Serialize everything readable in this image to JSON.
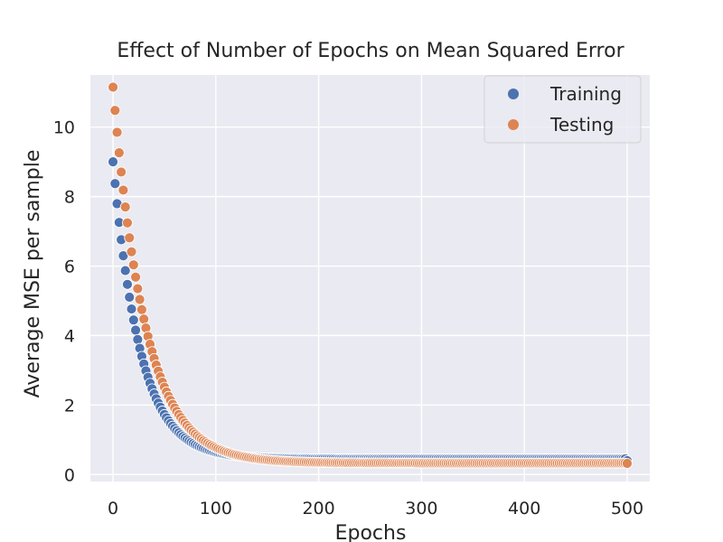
{
  "chart_data": {
    "type": "scatter",
    "title": "Effect of Number of Epochs on Mean Squared Error",
    "xlabel": "Epochs",
    "ylabel": "Average MSE per sample",
    "xlim": [
      -22,
      522
    ],
    "ylim": [
      -0.2,
      11.5
    ],
    "x_ticks": [
      0,
      100,
      200,
      300,
      400,
      500
    ],
    "y_ticks": [
      0,
      2,
      4,
      6,
      8,
      10
    ],
    "grid": true,
    "legend_position": "top-right",
    "series": [
      {
        "name": "Training",
        "color": "#4c72b0",
        "x_range": [
          0,
          500
        ],
        "point_every": 2,
        "model": "exponential decay",
        "start": 9.0,
        "plateau": 0.45,
        "decay_per_epoch": 0.038,
        "final_point": {
          "x": 500,
          "y": 0.4
        }
      },
      {
        "name": "Testing",
        "color": "#dd8452",
        "x_range": [
          0,
          500
        ],
        "point_every": 2,
        "model": "exponential decay",
        "start": 11.15,
        "plateau": 0.33,
        "decay_per_epoch": 0.032,
        "final_point": {
          "x": 500,
          "y": 0.32
        }
      }
    ]
  }
}
